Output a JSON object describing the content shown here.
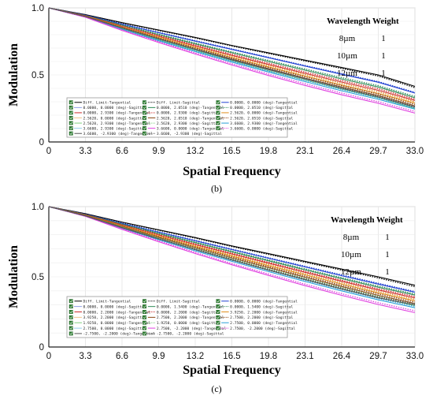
{
  "chart_data": [
    {
      "type": "line",
      "panel_label": "(b)",
      "xlabel": "Spatial Frequency",
      "ylabel": "Modulation",
      "xlim": [
        0,
        33.0
      ],
      "ylim": [
        0,
        1.0
      ],
      "x_ticks": [
        "0",
        "3.3",
        "6.6",
        "9.9",
        "13.2",
        "16.5",
        "19.8",
        "23.1",
        "26.4",
        "29.7",
        "33.0"
      ],
      "y_ticks": [
        "0",
        "0.5",
        "1.0"
      ],
      "grid": true,
      "legend_position": "bottom-center",
      "x": [
        0,
        3.3,
        6.6,
        9.9,
        13.2,
        16.5,
        19.8,
        23.1,
        26.4,
        29.7,
        33.0
      ],
      "wavelength_table": {
        "headers": [
          "Wavelength",
          "Weight"
        ],
        "rows": [
          [
            "8µm",
            "1"
          ],
          [
            "10µm",
            "1"
          ],
          [
            "12µm",
            "1"
          ]
        ]
      },
      "series": [
        {
          "name": "Diff. Limit-Tangential",
          "color": "#000000",
          "dash": "solid",
          "values": [
            1.0,
            0.95,
            0.89,
            0.835,
            0.78,
            0.72,
            0.665,
            0.61,
            0.555,
            0.5,
            0.415
          ]
        },
        {
          "name": "Diff. Limit-Sagittal",
          "color": "#000000",
          "dash": "dotted",
          "values": [
            1.0,
            0.949,
            0.888,
            0.832,
            0.776,
            0.716,
            0.66,
            0.604,
            0.548,
            0.492,
            0.405
          ]
        },
        {
          "name": "0.0000, 0.0000 (deg)-Tangential",
          "color": "#1f3fd0",
          "dash": "solid",
          "values": [
            1.0,
            0.945,
            0.878,
            0.815,
            0.752,
            0.69,
            0.628,
            0.566,
            0.505,
            0.445,
            0.365
          ]
        },
        {
          "name": "0.0000, 0.0000 (deg)-Sagittal",
          "color": "#1f3fd0",
          "dash": "dotted",
          "values": [
            1.0,
            0.946,
            0.88,
            0.818,
            0.756,
            0.694,
            0.632,
            0.57,
            0.51,
            0.45,
            0.37
          ]
        },
        {
          "name": "0.0000, 2.0510 (deg)-Tangential",
          "color": "#2e8b57",
          "dash": "solid",
          "values": [
            1.0,
            0.942,
            0.87,
            0.8,
            0.732,
            0.665,
            0.6,
            0.535,
            0.47,
            0.41,
            0.33
          ]
        },
        {
          "name": "0.0000, 2.0510 (deg)-Sagittal",
          "color": "#2e8b57",
          "dash": "dotted",
          "values": [
            1.0,
            0.943,
            0.873,
            0.805,
            0.738,
            0.672,
            0.608,
            0.544,
            0.48,
            0.42,
            0.34
          ]
        },
        {
          "name": "0.0000, 2.9300 (deg)-Tangential",
          "color": "#cc2a2a",
          "dash": "solid",
          "values": [
            1.0,
            0.94,
            0.862,
            0.788,
            0.716,
            0.646,
            0.578,
            0.512,
            0.447,
            0.385,
            0.31
          ]
        },
        {
          "name": "0.0000, 2.9300 (deg)-Sagittal",
          "color": "#cc2a2a",
          "dash": "dotted",
          "values": [
            1.0,
            0.941,
            0.866,
            0.794,
            0.724,
            0.655,
            0.588,
            0.522,
            0.458,
            0.397,
            0.32
          ]
        },
        {
          "name": "2.5620, 0.0000 (deg)-Tangential",
          "color": "#e08c1a",
          "dash": "solid",
          "values": [
            1.0,
            0.938,
            0.856,
            0.778,
            0.703,
            0.63,
            0.56,
            0.492,
            0.425,
            0.362,
            0.29
          ]
        },
        {
          "name": "2.5620, 0.0000 (deg)-Sagittal",
          "color": "#e08c1a",
          "dash": "dotted",
          "values": [
            1.0,
            0.939,
            0.86,
            0.784,
            0.71,
            0.64,
            0.57,
            0.503,
            0.437,
            0.374,
            0.3
          ]
        },
        {
          "name": "2.5620, 2.0510 (deg)-Tangential",
          "color": "#8b4513",
          "dash": "solid",
          "values": [
            1.0,
            0.936,
            0.85,
            0.77,
            0.692,
            0.618,
            0.546,
            0.476,
            0.41,
            0.346,
            0.27
          ]
        },
        {
          "name": "2.5620, 2.0510 (deg)-Sagittal",
          "color": "#8b4513",
          "dash": "dotted",
          "values": [
            1.0,
            0.937,
            0.853,
            0.775,
            0.7,
            0.626,
            0.555,
            0.486,
            0.42,
            0.357,
            0.28
          ]
        },
        {
          "name": "2.5620, 2.9300 (deg)-Tangential",
          "color": "#7fd07f",
          "dash": "solid",
          "values": [
            1.0,
            0.934,
            0.845,
            0.762,
            0.683,
            0.606,
            0.532,
            0.462,
            0.394,
            0.33,
            0.25
          ]
        },
        {
          "name": "2.5620, 2.9300 (deg)-Sagittal",
          "color": "#7fd07f",
          "dash": "dotted",
          "values": [
            1.0,
            0.935,
            0.848,
            0.767,
            0.69,
            0.614,
            0.541,
            0.472,
            0.404,
            0.34,
            0.26
          ]
        },
        {
          "name": "3.6600, 2.9300 (deg)-Tangential",
          "color": "#2a9fd6",
          "dash": "solid",
          "values": [
            1.0,
            0.932,
            0.84,
            0.755,
            0.674,
            0.596,
            0.522,
            0.45,
            0.382,
            0.318,
            0.245
          ]
        },
        {
          "name": "3.6600, 2.9300 (deg)-Sagittal",
          "color": "#2a9fd6",
          "dash": "dotted",
          "values": [
            1.0,
            0.933,
            0.843,
            0.76,
            0.68,
            0.604,
            0.53,
            0.46,
            0.392,
            0.328,
            0.255
          ]
        },
        {
          "name": "3.6600, 0.0000 (deg)-Tangential",
          "color": "#e040e0",
          "dash": "solid",
          "values": [
            1.0,
            0.93,
            0.832,
            0.742,
            0.656,
            0.574,
            0.496,
            0.422,
            0.352,
            0.288,
            0.215
          ]
        },
        {
          "name": "3.6600, 0.0000 (deg)-Sagittal",
          "color": "#e040e0",
          "dash": "dotted",
          "values": [
            1.0,
            0.931,
            0.836,
            0.748,
            0.664,
            0.584,
            0.507,
            0.434,
            0.365,
            0.3,
            0.228
          ]
        },
        {
          "name": "3.6600, -2.9300 (deg)-Tangential",
          "color": "#555555",
          "dash": "solid",
          "values": [
            1.0,
            0.935,
            0.85,
            0.768,
            0.69,
            0.612,
            0.54,
            0.47,
            0.4,
            0.335,
            0.26
          ]
        },
        {
          "name": "3.6600, -2.9300 (deg)-Sagittal",
          "color": "#555555",
          "dash": "dotted",
          "values": [
            1.0,
            0.936,
            0.853,
            0.772,
            0.695,
            0.618,
            0.546,
            0.476,
            0.406,
            0.342,
            0.266
          ]
        }
      ],
      "legend_labels": [
        "Diff. Limit-Tangential",
        "Diff. Limit-Sagittal",
        "0.0000, 0.0000 (deg)-Tangential",
        "0.0000, 0.0000 (deg)-Sagittal",
        "0.0000, 2.0510 (deg)-Tangential",
        "0.0000, 2.0510 (deg)-Sagittal",
        "0.0000, 2.9300 (deg)-Tangential",
        "0.0000, 2.9300 (deg)-Sagittal",
        "2.5620, 0.0000 (deg)-Tangential",
        "2.5620, 0.0000 (deg)-Sagittal",
        "2.5620, 2.0510 (deg)-Tangential",
        "2.5620, 2.0510 (deg)-Sagittal",
        "2.5620, 2.9300 (deg)-Tangential",
        "2.5620, 2.9300 (deg)-Sagittal",
        "3.6600, 2.9300 (deg)-Tangential",
        "3.6600, 2.9300 (deg)-Sagittal",
        "3.6600, 0.0000 (deg)-Tangential",
        "3.6600, 0.0000 (deg)-Sagittal",
        "3.6600, -2.9300 (deg)-Tangential",
        "3.6600, -2.9300 (deg)-Sagittal"
      ]
    },
    {
      "type": "line",
      "panel_label": "(c)",
      "xlabel": "Spatial Frequency",
      "ylabel": "Modulation",
      "xlim": [
        0,
        33.0
      ],
      "ylim": [
        0,
        1.0
      ],
      "x_ticks": [
        "0",
        "3.3",
        "6.6",
        "9.9",
        "13.2",
        "16.5",
        "19.8",
        "23.1",
        "26.4",
        "29.7",
        "33.0"
      ],
      "y_ticks": [
        "0",
        "0.5",
        "1.0"
      ],
      "grid": true,
      "legend_position": "bottom-center",
      "x": [
        0,
        3.3,
        6.6,
        9.9,
        13.2,
        16.5,
        19.8,
        23.1,
        26.4,
        29.7,
        33.0
      ],
      "wavelength_table": {
        "headers": [
          "Wavelength",
          "Weight"
        ],
        "rows": [
          [
            "8µm",
            "1"
          ],
          [
            "10µm",
            "1"
          ],
          [
            "12µm",
            "1"
          ]
        ]
      },
      "series": [
        {
          "name": "Diff. Limit-Tangential",
          "color": "#000000",
          "dash": "solid",
          "values": [
            1.0,
            0.95,
            0.89,
            0.835,
            0.78,
            0.72,
            0.665,
            0.61,
            0.555,
            0.5,
            0.44
          ]
        },
        {
          "name": "Diff. Limit-Sagittal",
          "color": "#000000",
          "dash": "dotted",
          "values": [
            1.0,
            0.949,
            0.888,
            0.832,
            0.776,
            0.716,
            0.66,
            0.604,
            0.548,
            0.492,
            0.43
          ]
        },
        {
          "name": "0.0000, 0.0000 (deg)-Tangential",
          "color": "#1f3fd0",
          "dash": "solid",
          "values": [
            1.0,
            0.945,
            0.88,
            0.818,
            0.756,
            0.694,
            0.632,
            0.57,
            0.508,
            0.448,
            0.39
          ]
        },
        {
          "name": "0.0000, 0.0000 (deg)-Sagittal",
          "color": "#1f3fd0",
          "dash": "dotted",
          "values": [
            1.0,
            0.946,
            0.882,
            0.82,
            0.76,
            0.698,
            0.636,
            0.575,
            0.514,
            0.454,
            0.395
          ]
        },
        {
          "name": "0.0000, 1.5400 (deg)-Tangential",
          "color": "#2e8b57",
          "dash": "solid",
          "values": [
            1.0,
            0.943,
            0.874,
            0.808,
            0.743,
            0.678,
            0.614,
            0.55,
            0.487,
            0.426,
            0.37
          ]
        },
        {
          "name": "0.0000, 1.5400 (deg)-Sagittal",
          "color": "#2e8b57",
          "dash": "dotted",
          "values": [
            1.0,
            0.944,
            0.876,
            0.811,
            0.747,
            0.683,
            0.62,
            0.557,
            0.494,
            0.434,
            0.378
          ]
        },
        {
          "name": "0.0000, 2.2000 (deg)-Tangential",
          "color": "#cc2a2a",
          "dash": "solid",
          "values": [
            1.0,
            0.941,
            0.868,
            0.798,
            0.73,
            0.663,
            0.597,
            0.532,
            0.468,
            0.406,
            0.35
          ]
        },
        {
          "name": "0.0000, 2.2000 (deg)-Sagittal",
          "color": "#cc2a2a",
          "dash": "dotted",
          "values": [
            1.0,
            0.942,
            0.871,
            0.802,
            0.735,
            0.669,
            0.604,
            0.54,
            0.476,
            0.415,
            0.36
          ]
        },
        {
          "name": "3.9250, 2.2000 (deg)-Tangential",
          "color": "#e08c1a",
          "dash": "solid",
          "values": [
            1.0,
            0.939,
            0.862,
            0.788,
            0.717,
            0.648,
            0.58,
            0.514,
            0.449,
            0.386,
            0.33
          ]
        },
        {
          "name": "3.9250, 2.2000 (deg)-Sagittal",
          "color": "#e08c1a",
          "dash": "dotted",
          "values": [
            1.0,
            0.94,
            0.865,
            0.793,
            0.723,
            0.655,
            0.588,
            0.522,
            0.458,
            0.396,
            0.34
          ]
        },
        {
          "name": "2.7500, 2.2000 (deg)-Tangential",
          "color": "#8b4513",
          "dash": "solid",
          "values": [
            1.0,
            0.937,
            0.857,
            0.78,
            0.706,
            0.634,
            0.565,
            0.497,
            0.431,
            0.368,
            0.31
          ]
        },
        {
          "name": "2.7500, 2.2000 (deg)-Sagittal",
          "color": "#8b4513",
          "dash": "dotted",
          "values": [
            1.0,
            0.938,
            0.86,
            0.785,
            0.712,
            0.641,
            0.572,
            0.505,
            0.44,
            0.378,
            0.32
          ]
        },
        {
          "name": "1.9250, 0.0000 (deg)-Tangential",
          "color": "#7fd07f",
          "dash": "solid",
          "values": [
            1.0,
            0.935,
            0.852,
            0.772,
            0.695,
            0.622,
            0.55,
            0.482,
            0.415,
            0.352,
            0.295
          ]
        },
        {
          "name": "1.9250, 0.0000 (deg)-Sagittal",
          "color": "#7fd07f",
          "dash": "dotted",
          "values": [
            1.0,
            0.936,
            0.855,
            0.777,
            0.702,
            0.629,
            0.558,
            0.49,
            0.424,
            0.362,
            0.305
          ]
        },
        {
          "name": "2.7500, 0.0000 (deg)-Tangential",
          "color": "#2a9fd6",
          "dash": "solid",
          "values": [
            1.0,
            0.933,
            0.846,
            0.764,
            0.685,
            0.61,
            0.537,
            0.467,
            0.4,
            0.336,
            0.28
          ]
        },
        {
          "name": "2.7500, 0.0000 (deg)-Sagittal",
          "color": "#2a9fd6",
          "dash": "dotted",
          "values": [
            1.0,
            0.934,
            0.849,
            0.769,
            0.692,
            0.618,
            0.546,
            0.476,
            0.41,
            0.346,
            0.29
          ]
        },
        {
          "name": "2.7500, -2.2000 (deg)-Tangential",
          "color": "#e040e0",
          "dash": "solid",
          "values": [
            1.0,
            0.931,
            0.838,
            0.75,
            0.666,
            0.586,
            0.51,
            0.437,
            0.368,
            0.303,
            0.245
          ]
        },
        {
          "name": "2.7500, -2.2000 (deg)-Sagittal",
          "color": "#e040e0",
          "dash": "dotted",
          "values": [
            1.0,
            0.932,
            0.842,
            0.756,
            0.674,
            0.595,
            0.52,
            0.448,
            0.38,
            0.315,
            0.258
          ]
        },
        {
          "name": "-2.7500, -2.2000 (deg)-Tangential",
          "color": "#555555",
          "dash": "solid",
          "values": [
            1.0,
            0.934,
            0.85,
            0.77,
            0.694,
            0.62,
            0.548,
            0.48,
            0.413,
            0.35,
            0.3
          ]
        },
        {
          "name": "-2.7500, -2.2000 (deg)-Sagittal",
          "color": "#555555",
          "dash": "dotted",
          "values": [
            1.0,
            0.935,
            0.852,
            0.773,
            0.698,
            0.625,
            0.554,
            0.486,
            0.42,
            0.358,
            0.308
          ]
        }
      ],
      "legend_labels": [
        "Diff. Limit-Tangential",
        "Diff. Limit-Sagittal",
        "0.0000, 0.0000 (deg)-Tangential",
        "0.0000, 0.0000 (deg)-Sagittal",
        "0.0000, 1.5400 (deg)-Tangential",
        "0.0000, 1.5400 (deg)-Sagittal",
        "0.0000, 2.2000 (deg)-Tangential",
        "0.0000, 2.2000 (deg)-Sagittal",
        "3.9250, 2.2000 (deg)-Tangential",
        "3.9250, 2.2000 (deg)-Sagittal",
        "2.7500, 2.2000 (deg)-Tangential",
        "2.7500, 2.2000 (deg)-Sagittal",
        "1.9250, 0.0000 (deg)-Tangential",
        "1.9250, 0.0000 (deg)-Sagittal",
        "2.7500, 0.0000 (deg)-Tangential",
        "2.7500, 0.0000 (deg)-Sagittal",
        "2.7500, -2.2000 (deg)-Tangential",
        "2.7500, -2.2000 (deg)-Sagittal",
        "-2.7500, -2.2000 (deg)-Tangential",
        "-2.7500, -2.2000 (deg)-Sagittal"
      ]
    }
  ]
}
